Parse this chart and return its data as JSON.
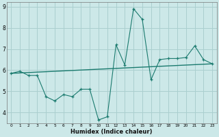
{
  "xlabel": "Humidex (Indice chaleur)",
  "ylabel": "",
  "bg_color": "#cce8e8",
  "grid_color": "#aacfcf",
  "line_color": "#1a7a6e",
  "x_data": [
    0,
    1,
    2,
    3,
    4,
    5,
    6,
    7,
    8,
    9,
    10,
    11,
    12,
    13,
    14,
    15,
    16,
    17,
    18,
    19,
    20,
    21,
    22,
    23
  ],
  "y_scatter": [
    5.85,
    5.95,
    5.75,
    5.75,
    4.75,
    4.55,
    4.85,
    4.75,
    5.1,
    5.1,
    3.65,
    3.8,
    7.2,
    6.25,
    8.9,
    8.4,
    5.55,
    6.5,
    6.55,
    6.55,
    6.6,
    7.15,
    6.5,
    6.3
  ],
  "trend_y0": 5.85,
  "trend_y1": 6.3,
  "ylim": [
    3.5,
    9.2
  ],
  "xlim": [
    -0.5,
    23.5
  ],
  "yticks": [
    4,
    5,
    6,
    7,
    8,
    9
  ],
  "xticks": [
    0,
    1,
    2,
    3,
    4,
    5,
    6,
    7,
    8,
    9,
    10,
    11,
    12,
    13,
    14,
    15,
    16,
    17,
    18,
    19,
    20,
    21,
    22,
    23
  ]
}
